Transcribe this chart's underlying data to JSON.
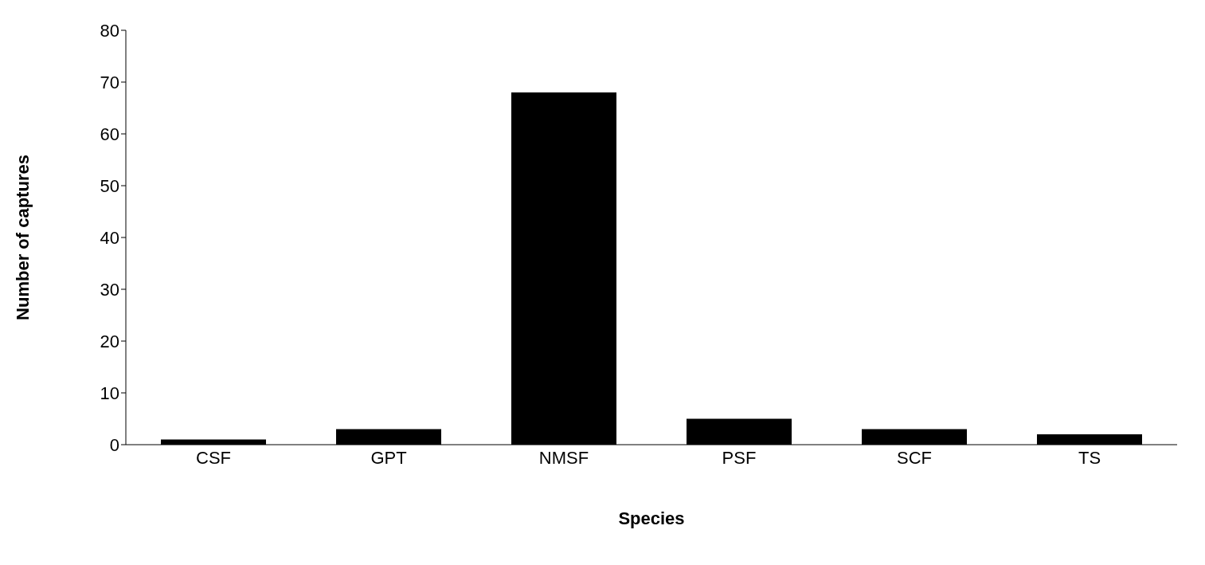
{
  "chart_data": {
    "type": "bar",
    "xlabel": "Species",
    "ylabel": "Number of captures",
    "categories": [
      "CSF",
      "GPT",
      "NMSF",
      "PSF",
      "SCF",
      "TS"
    ],
    "values": [
      1,
      3,
      68,
      5,
      3,
      2
    ],
    "color": "#000000",
    "ylim": [
      0,
      80
    ],
    "yticks": [
      0,
      10,
      20,
      30,
      40,
      50,
      60,
      70,
      80
    ],
    "grid": false,
    "legend": false
  }
}
